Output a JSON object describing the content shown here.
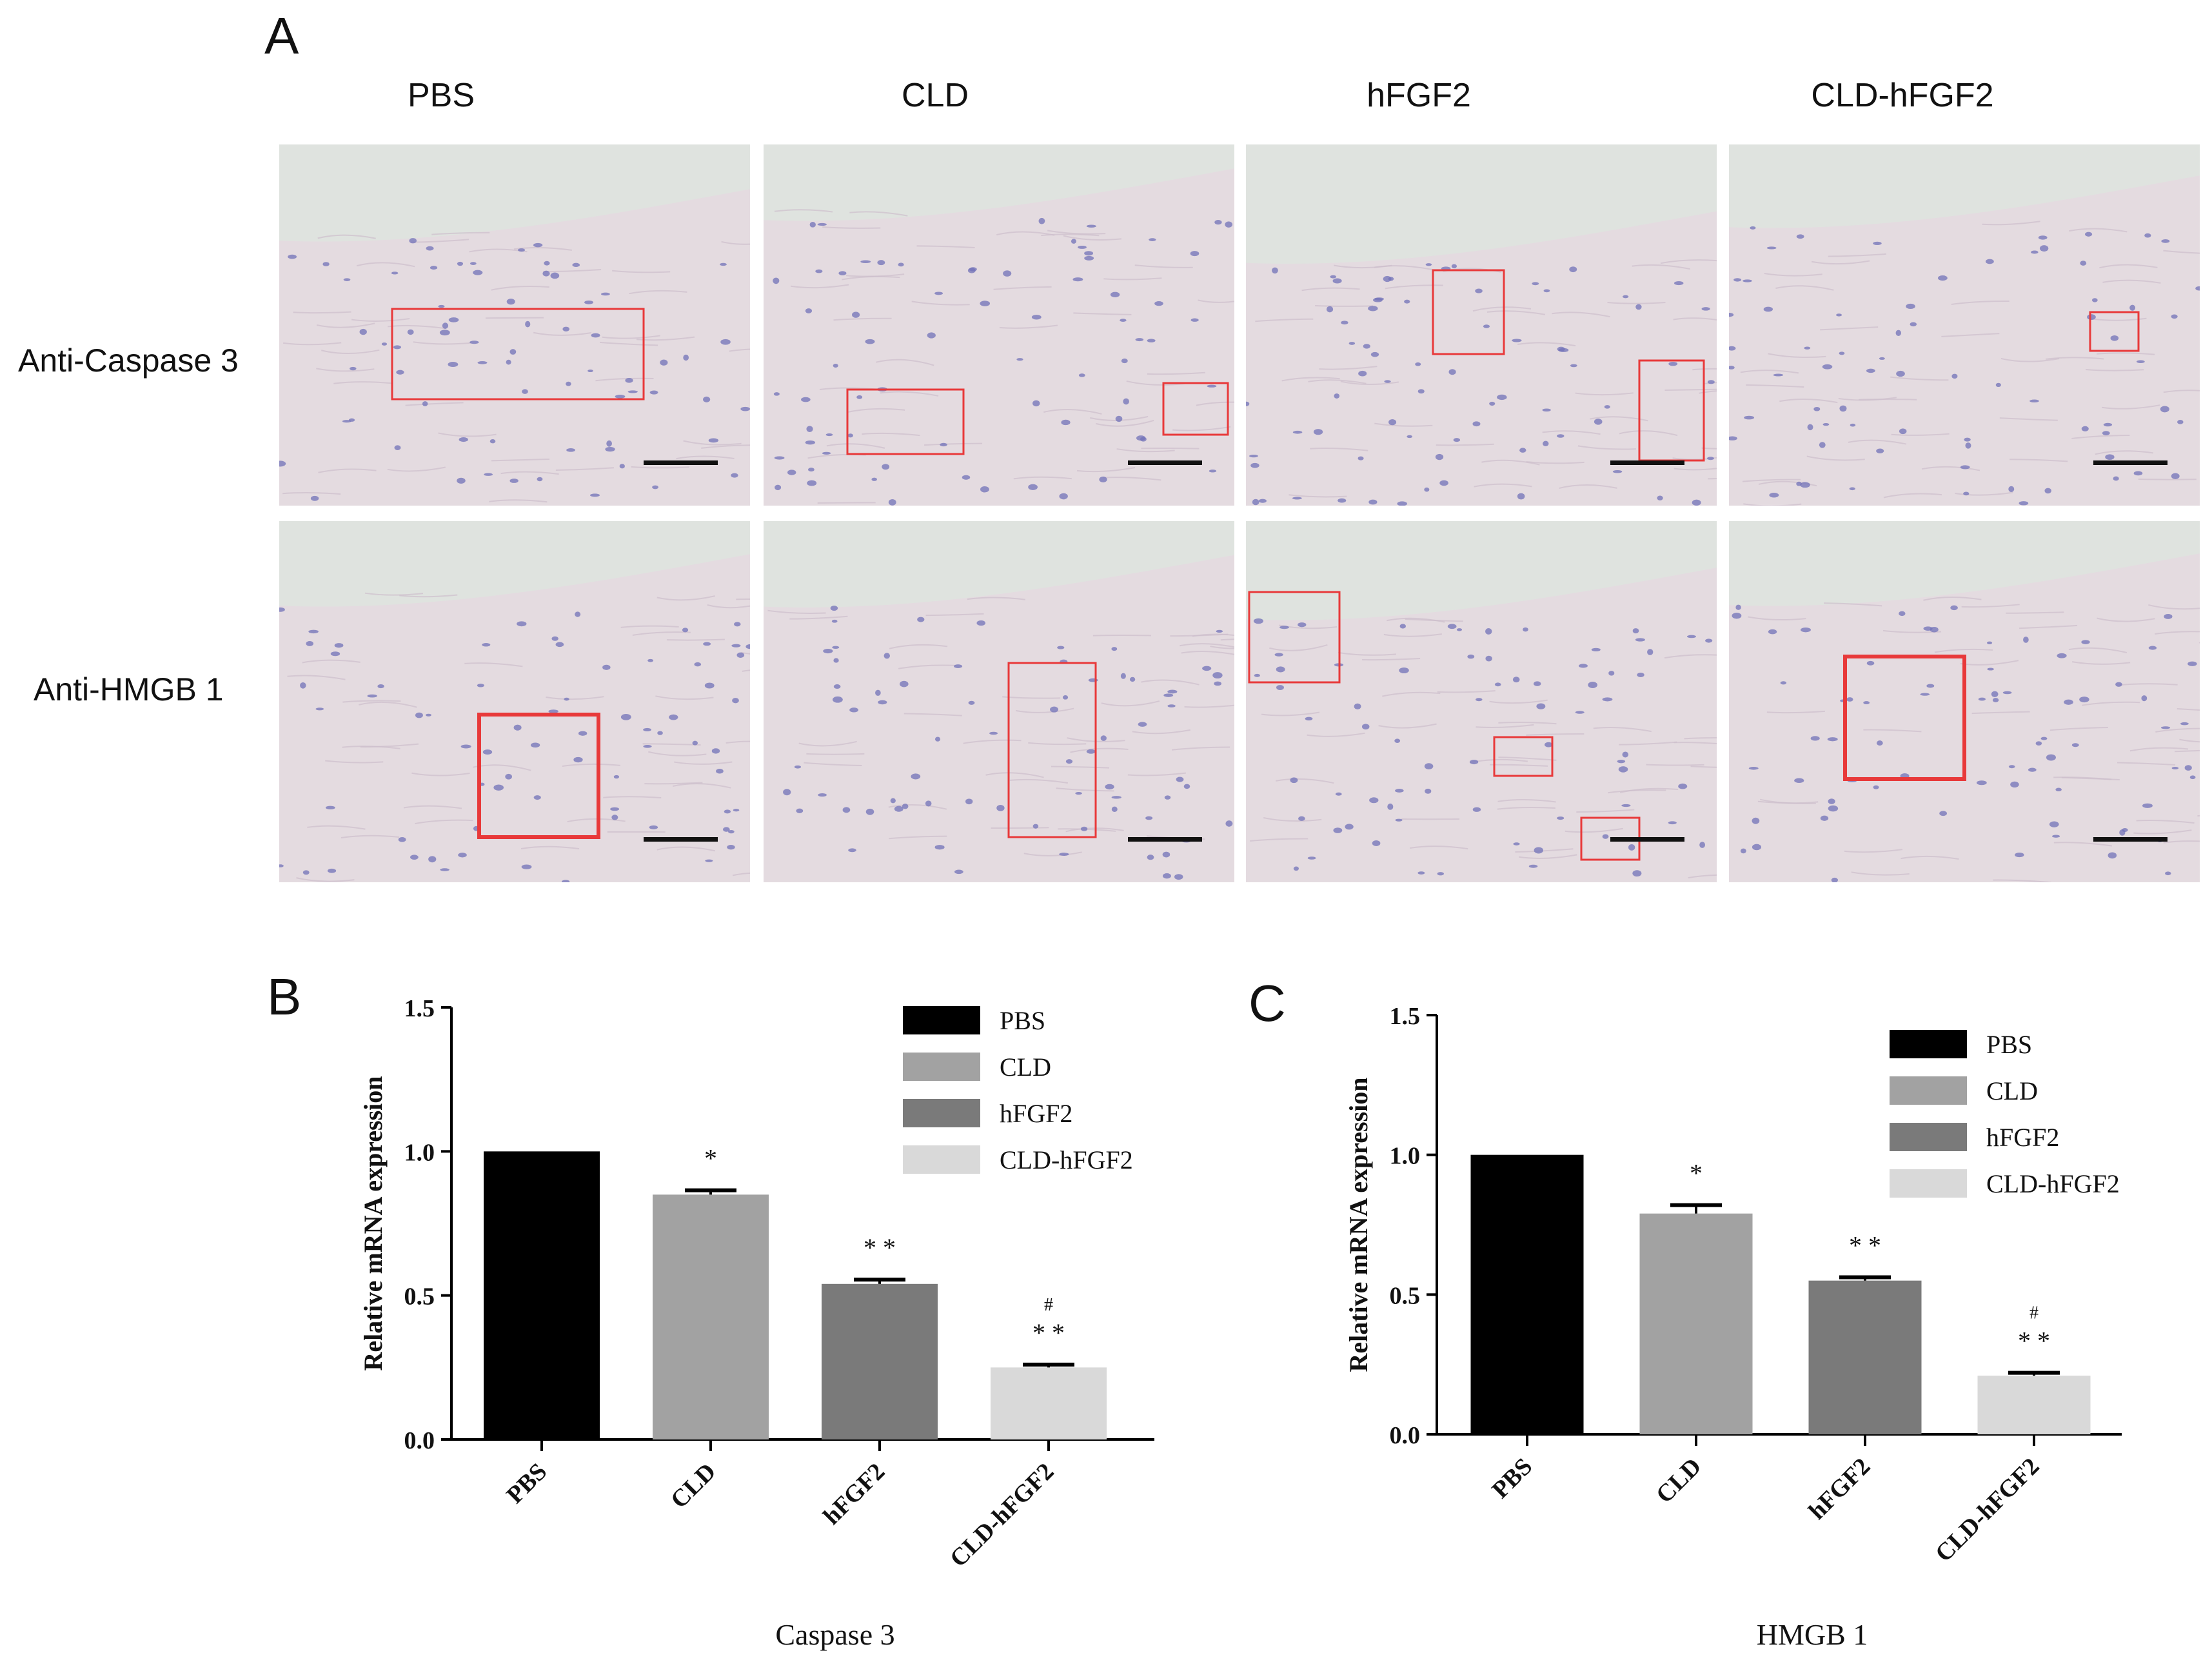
{
  "panels": {
    "A": "A",
    "B": "B",
    "C": "C"
  },
  "micrographs": {
    "columns": [
      "PBS",
      "CLD",
      "hFGF2",
      "CLD-hFGF2"
    ],
    "rows": [
      "Anti-Caspase 3",
      "Anti-HMGB 1"
    ]
  },
  "colors": {
    "PBS": "#000000",
    "CLD": "#a2a2a2",
    "hFGF2": "#7a7a7a",
    "CLD-hFGF2": "#d9d9d9",
    "highlight_box": "#e8393a"
  },
  "chart_data": [
    {
      "type": "bar",
      "panel": "B",
      "title": "Caspase 3",
      "xlabel": "Caspase 3",
      "ylabel": "Relative mRNA expression",
      "categories": [
        "PBS",
        "CLD",
        "hFGF2",
        "CLD-hFGF2"
      ],
      "values": [
        1.0,
        0.85,
        0.54,
        0.25
      ],
      "errors": [
        0.0,
        0.015,
        0.015,
        0.01
      ],
      "significance": [
        "",
        "*",
        "* *",
        "* *"
      ],
      "significance_hash": [
        "",
        "",
        "",
        "#"
      ],
      "ylim": [
        0.0,
        1.5
      ],
      "yticks": [
        "0.0",
        "0.5",
        "1.0",
        "1.5"
      ],
      "legend": [
        "PBS",
        "CLD",
        "hFGF2",
        "CLD-hFGF2"
      ],
      "legend_position": "top-right"
    },
    {
      "type": "bar",
      "panel": "C",
      "title": "HMGB 1",
      "xlabel": "HMGB 1",
      "ylabel": "Relative mRNA expression",
      "categories": [
        "PBS",
        "CLD",
        "hFGF2",
        "CLD-hFGF2"
      ],
      "values": [
        1.0,
        0.79,
        0.55,
        0.21
      ],
      "errors": [
        0.0,
        0.03,
        0.012,
        0.01
      ],
      "significance": [
        "",
        "*",
        "* *",
        "* *"
      ],
      "significance_hash": [
        "",
        "",
        "",
        "#"
      ],
      "ylim": [
        0.0,
        1.5
      ],
      "yticks": [
        "0.0",
        "0.5",
        "1.0",
        "1.5"
      ],
      "legend": [
        "PBS",
        "CLD",
        "hFGF2",
        "CLD-hFGF2"
      ],
      "legend_position": "top-right"
    }
  ]
}
